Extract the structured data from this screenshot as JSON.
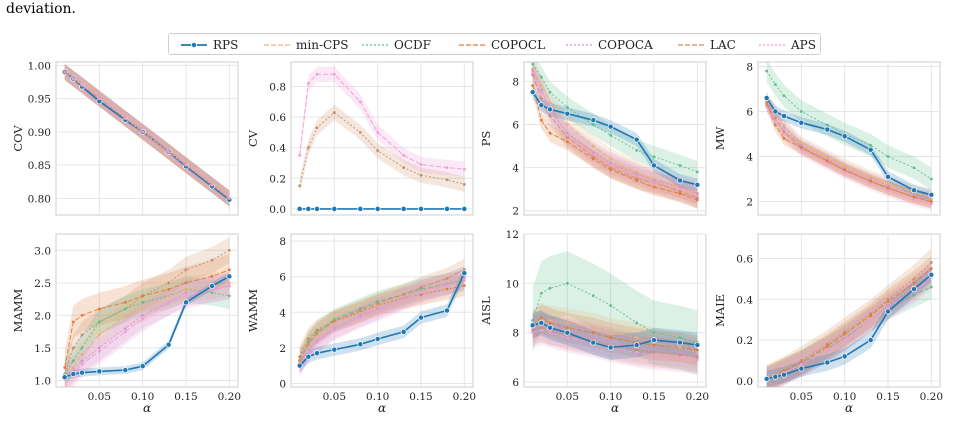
{
  "caption_tail": "deviation.",
  "legend": [
    {
      "name": "RPS",
      "color": "#1f77b4"
    },
    {
      "name": "min-CPS",
      "color": "#e8b27a"
    },
    {
      "name": "OCDF",
      "color": "#5fbf8f"
    },
    {
      "name": "COPOCL",
      "color": "#e07b39"
    },
    {
      "name": "COPOCA",
      "color": "#c79bd0"
    },
    {
      "name": "LAC",
      "color": "#c8906a"
    },
    {
      "name": "APS",
      "color": "#f39bd8"
    }
  ],
  "chart_data": [
    {
      "type": "line",
      "ylabel": "COV",
      "xlabel": "",
      "ylim": [
        0.775,
        1.005
      ],
      "xticks": [],
      "yticks": [
        0.8,
        0.85,
        0.9,
        0.95,
        1.0
      ],
      "ytick_labels": [
        "0.80",
        "0.85",
        "0.90",
        "0.95",
        "1.00"
      ],
      "x": [
        0.01,
        0.02,
        0.03,
        0.05,
        0.08,
        0.1,
        0.13,
        0.15,
        0.18,
        0.2
      ],
      "series": [
        {
          "name": "RPS",
          "values": [
            0.99,
            0.98,
            0.968,
            0.946,
            0.918,
            0.9,
            0.87,
            0.848,
            0.818,
            0.798
          ],
          "band": 0.003
        },
        {
          "name": "min-CPS",
          "values": [
            0.99,
            0.98,
            0.97,
            0.95,
            0.92,
            0.9,
            0.87,
            0.85,
            0.82,
            0.8
          ],
          "band": 0.012
        },
        {
          "name": "OCDF",
          "values": [
            0.99,
            0.98,
            0.97,
            0.95,
            0.92,
            0.9,
            0.87,
            0.85,
            0.82,
            0.8
          ],
          "band": 0.012
        },
        {
          "name": "COPOCL",
          "values": [
            0.99,
            0.98,
            0.97,
            0.95,
            0.92,
            0.9,
            0.87,
            0.85,
            0.82,
            0.8
          ],
          "band": 0.012
        },
        {
          "name": "COPOCA",
          "values": [
            0.99,
            0.98,
            0.97,
            0.95,
            0.92,
            0.9,
            0.87,
            0.85,
            0.82,
            0.8
          ],
          "band": 0.012
        },
        {
          "name": "LAC",
          "values": [
            0.99,
            0.98,
            0.97,
            0.95,
            0.92,
            0.9,
            0.87,
            0.85,
            0.82,
            0.8
          ],
          "band": 0.012
        },
        {
          "name": "APS",
          "values": [
            0.99,
            0.98,
            0.97,
            0.95,
            0.92,
            0.9,
            0.87,
            0.85,
            0.82,
            0.8
          ],
          "band": 0.012
        }
      ]
    },
    {
      "type": "line",
      "ylabel": "CV",
      "xlabel": "",
      "ylim": [
        -0.04,
        0.96
      ],
      "xticks": [],
      "yticks": [
        0.0,
        0.2,
        0.4,
        0.6,
        0.8
      ],
      "ytick_labels": [
        "0.0",
        "0.2",
        "0.4",
        "0.6",
        "0.8"
      ],
      "x": [
        0.01,
        0.02,
        0.03,
        0.05,
        0.08,
        0.1,
        0.13,
        0.15,
        0.18,
        0.2
      ],
      "series": [
        {
          "name": "LAC",
          "values": [
            0.15,
            0.4,
            0.53,
            0.63,
            0.5,
            0.38,
            0.27,
            0.22,
            0.19,
            0.16
          ],
          "band": 0.05
        },
        {
          "name": "APS",
          "values": [
            0.35,
            0.82,
            0.88,
            0.88,
            0.7,
            0.5,
            0.35,
            0.29,
            0.27,
            0.26
          ],
          "band": 0.05
        },
        {
          "name": "RPS",
          "values": [
            0.0,
            0.0,
            0.0,
            0.0,
            0.0,
            0.0,
            0.0,
            0.0,
            0.0,
            0.0
          ],
          "band": 0.0
        }
      ]
    },
    {
      "type": "line",
      "ylabel": "PS",
      "xlabel": "",
      "ylim": [
        1.8,
        8.9
      ],
      "xticks": [],
      "yticks": [
        2,
        4,
        6,
        8
      ],
      "ytick_labels": [
        "2",
        "4",
        "6",
        "8"
      ],
      "x": [
        0.01,
        0.02,
        0.03,
        0.05,
        0.08,
        0.1,
        0.13,
        0.15,
        0.18,
        0.2
      ],
      "series": [
        {
          "name": "OCDF",
          "values": [
            8.8,
            8.2,
            7.5,
            6.8,
            6.0,
            5.5,
            4.8,
            4.5,
            4.1,
            3.8
          ],
          "band": 0.5
        },
        {
          "name": "min-CPS",
          "values": [
            8.6,
            7.8,
            7.0,
            6.0,
            5.0,
            4.4,
            3.8,
            3.5,
            3.1,
            2.8
          ],
          "band": 0.5
        },
        {
          "name": "COPOCA",
          "values": [
            8.5,
            7.6,
            6.7,
            5.6,
            4.7,
            4.2,
            3.7,
            3.4,
            3.1,
            2.8
          ],
          "band": 0.5
        },
        {
          "name": "LAC",
          "values": [
            8.3,
            7.2,
            6.4,
            5.4,
            4.5,
            4.0,
            3.5,
            3.3,
            2.9,
            2.6
          ],
          "band": 0.5
        },
        {
          "name": "APS",
          "values": [
            8.4,
            7.5,
            6.6,
            5.5,
            4.6,
            4.1,
            3.6,
            3.3,
            3.0,
            2.7
          ],
          "band": 0.5
        },
        {
          "name": "COPOCL",
          "values": [
            7.8,
            6.2,
            5.6,
            5.2,
            4.4,
            3.9,
            3.4,
            3.1,
            2.8,
            2.5
          ],
          "band": 0.4
        },
        {
          "name": "RPS",
          "values": [
            7.5,
            6.9,
            6.7,
            6.5,
            6.2,
            5.9,
            5.3,
            4.1,
            3.4,
            3.2
          ],
          "band": 0.3
        }
      ]
    },
    {
      "type": "line",
      "ylabel": "MW",
      "xlabel": "",
      "ylim": [
        1.4,
        8.2
      ],
      "xticks": [],
      "yticks": [
        2,
        4,
        6,
        8
      ],
      "ytick_labels": [
        "2",
        "4",
        "6",
        "8"
      ],
      "x": [
        0.01,
        0.02,
        0.03,
        0.05,
        0.08,
        0.1,
        0.13,
        0.15,
        0.18,
        0.2
      ],
      "series": [
        {
          "name": "OCDF",
          "values": [
            7.8,
            7.2,
            6.7,
            6.0,
            5.4,
            5.0,
            4.5,
            4.0,
            3.5,
            3.0
          ],
          "band": 0.5
        },
        {
          "name": "min-CPS",
          "values": [
            6.5,
            6.0,
            5.4,
            4.6,
            4.0,
            3.6,
            3.1,
            2.8,
            2.4,
            2.2
          ],
          "band": 0.3
        },
        {
          "name": "COPOCA",
          "values": [
            6.4,
            5.9,
            5.3,
            4.5,
            3.9,
            3.5,
            3.0,
            2.7,
            2.3,
            2.1
          ],
          "band": 0.3
        },
        {
          "name": "LAC",
          "values": [
            6.3,
            5.7,
            5.1,
            4.4,
            3.8,
            3.4,
            2.9,
            2.6,
            2.2,
            2.0
          ],
          "band": 0.3
        },
        {
          "name": "APS",
          "values": [
            6.2,
            5.6,
            5.0,
            4.3,
            3.7,
            3.3,
            2.8,
            2.5,
            2.1,
            1.9
          ],
          "band": 0.3
        },
        {
          "name": "COPOCL",
          "values": [
            6.4,
            5.4,
            4.8,
            4.4,
            3.8,
            3.4,
            2.9,
            2.6,
            2.2,
            2.0
          ],
          "band": 0.3
        },
        {
          "name": "RPS",
          "values": [
            6.6,
            6.0,
            5.8,
            5.5,
            5.2,
            4.9,
            4.3,
            3.1,
            2.5,
            2.3
          ],
          "band": 0.25
        }
      ]
    },
    {
      "type": "line",
      "ylabel": "MAMM",
      "xlabel": "α",
      "ylim": [
        0.9,
        3.25
      ],
      "xticks": [
        0.05,
        0.1,
        0.15,
        0.2
      ],
      "xtick_labels": [
        "0.05",
        "0.10",
        "0.15",
        "0.20"
      ],
      "yticks": [
        1.0,
        1.5,
        2.0,
        2.5,
        3.0
      ],
      "ytick_labels": [
        "1.0",
        "1.5",
        "2.0",
        "2.5",
        "3.0"
      ],
      "x": [
        0.01,
        0.02,
        0.03,
        0.05,
        0.08,
        0.1,
        0.13,
        0.15,
        0.18,
        0.2
      ],
      "series": [
        {
          "name": "LAC",
          "values": [
            1.1,
            1.5,
            1.7,
            1.9,
            2.1,
            2.3,
            2.5,
            2.7,
            2.85,
            3.0
          ],
          "band": 0.2
        },
        {
          "name": "COPOCL",
          "values": [
            1.2,
            1.9,
            2.0,
            2.1,
            2.2,
            2.3,
            2.4,
            2.5,
            2.6,
            2.7
          ],
          "band": 0.25
        },
        {
          "name": "OCDF",
          "values": [
            1.1,
            1.3,
            1.5,
            1.9,
            2.1,
            2.2,
            2.3,
            2.4,
            2.35,
            2.3
          ],
          "band": 0.2
        },
        {
          "name": "min-CPS",
          "values": [
            1.05,
            1.2,
            1.4,
            1.7,
            2.0,
            2.1,
            2.3,
            2.4,
            2.45,
            2.5
          ],
          "band": 0.2
        },
        {
          "name": "COPOCA",
          "values": [
            1.05,
            1.15,
            1.3,
            1.5,
            1.8,
            2.0,
            2.2,
            2.35,
            2.4,
            2.45
          ],
          "band": 0.2
        },
        {
          "name": "APS",
          "values": [
            1.05,
            1.1,
            1.25,
            1.45,
            1.75,
            1.95,
            2.2,
            2.3,
            2.4,
            2.45
          ],
          "band": 0.2
        },
        {
          "name": "RPS",
          "values": [
            1.05,
            1.1,
            1.12,
            1.14,
            1.16,
            1.22,
            1.55,
            2.2,
            2.45,
            2.6
          ],
          "band": 0.06
        }
      ]
    },
    {
      "type": "line",
      "ylabel": "WAMM",
      "xlabel": "α",
      "ylim": [
        -0.2,
        8.4
      ],
      "xticks": [
        0.05,
        0.1,
        0.15,
        0.2
      ],
      "xtick_labels": [
        "0.05",
        "0.10",
        "0.15",
        "0.20"
      ],
      "yticks": [
        0,
        2,
        4,
        6,
        8
      ],
      "ytick_labels": [
        "0",
        "2",
        "4",
        "6",
        "8"
      ],
      "x": [
        0.01,
        0.02,
        0.03,
        0.05,
        0.08,
        0.1,
        0.13,
        0.15,
        0.18,
        0.2
      ],
      "series": [
        {
          "name": "COPOCL",
          "values": [
            1.5,
            2.5,
            3.0,
            3.5,
            4.0,
            4.4,
            4.8,
            5.0,
            5.3,
            5.5
          ],
          "band": 0.6
        },
        {
          "name": "OCDF",
          "values": [
            1.3,
            2.3,
            2.9,
            3.6,
            4.2,
            4.6,
            5.0,
            5.3,
            5.6,
            5.8
          ],
          "band": 0.6
        },
        {
          "name": "min-CPS",
          "values": [
            1.2,
            2.1,
            2.7,
            3.4,
            4.0,
            4.4,
            4.9,
            5.2,
            5.6,
            5.9
          ],
          "band": 0.6
        },
        {
          "name": "LAC",
          "values": [
            1.3,
            2.2,
            2.8,
            3.5,
            4.1,
            4.5,
            5.0,
            5.4,
            5.9,
            6.4
          ],
          "band": 0.6
        },
        {
          "name": "COPOCA",
          "values": [
            1.1,
            1.9,
            2.4,
            3.1,
            3.8,
            4.2,
            4.8,
            5.2,
            5.6,
            6.0
          ],
          "band": 0.6
        },
        {
          "name": "APS",
          "values": [
            1.0,
            1.8,
            2.3,
            3.0,
            3.7,
            4.1,
            4.7,
            5.1,
            5.5,
            5.8
          ],
          "band": 0.6
        },
        {
          "name": "RPS",
          "values": [
            1.0,
            1.5,
            1.7,
            1.9,
            2.2,
            2.5,
            2.9,
            3.7,
            4.1,
            6.2
          ],
          "band": 0.35
        }
      ]
    },
    {
      "type": "line",
      "ylabel": "AISL",
      "xlabel": "α",
      "ylim": [
        5.8,
        12.0
      ],
      "xticks": [
        0.05,
        0.1,
        0.15,
        0.2
      ],
      "xtick_labels": [
        "0.05",
        "0.10",
        "0.15",
        "0.20"
      ],
      "yticks": [
        6,
        8,
        10,
        12
      ],
      "ytick_labels": [
        "6",
        "8",
        "10",
        "12"
      ],
      "x": [
        0.01,
        0.02,
        0.03,
        0.05,
        0.08,
        0.1,
        0.13,
        0.15,
        0.18,
        0.2
      ],
      "series": [
        {
          "name": "OCDF",
          "values": [
            8.5,
            9.6,
            9.8,
            10.0,
            9.5,
            9.1,
            8.4,
            8.0,
            7.8,
            7.6
          ],
          "band": 1.3
        },
        {
          "name": "COPOCL",
          "values": [
            8.3,
            8.6,
            8.4,
            8.2,
            8.0,
            7.8,
            7.6,
            7.5,
            7.4,
            7.3
          ],
          "band": 0.6
        },
        {
          "name": "min-CPS",
          "values": [
            8.3,
            8.5,
            8.5,
            8.4,
            8.2,
            8.0,
            7.8,
            7.6,
            7.4,
            7.2
          ],
          "band": 0.6
        },
        {
          "name": "COPOCA",
          "values": [
            8.2,
            8.3,
            8.1,
            8.0,
            7.8,
            7.6,
            7.4,
            7.3,
            7.2,
            7.1
          ],
          "band": 0.6
        },
        {
          "name": "LAC",
          "values": [
            8.1,
            8.2,
            8.1,
            7.9,
            7.7,
            7.5,
            7.3,
            7.2,
            7.1,
            7.0
          ],
          "band": 0.6
        },
        {
          "name": "APS",
          "values": [
            8.0,
            8.1,
            8.0,
            7.8,
            7.6,
            7.4,
            7.2,
            7.1,
            7.0,
            6.9
          ],
          "band": 0.6
        },
        {
          "name": "RPS",
          "values": [
            8.3,
            8.4,
            8.2,
            8.0,
            7.6,
            7.4,
            7.5,
            7.7,
            7.6,
            7.5
          ],
          "band": 0.5
        }
      ]
    },
    {
      "type": "line",
      "ylabel": "MAIE",
      "xlabel": "α",
      "ylim": [
        -0.03,
        0.72
      ],
      "xticks": [
        0.05,
        0.1,
        0.15,
        0.2
      ],
      "xtick_labels": [
        "0.05",
        "0.10",
        "0.15",
        "0.20"
      ],
      "yticks": [
        0.0,
        0.2,
        0.4,
        0.6
      ],
      "ytick_labels": [
        "0.0",
        "0.2",
        "0.4",
        "0.6"
      ],
      "x": [
        0.01,
        0.02,
        0.03,
        0.05,
        0.08,
        0.1,
        0.13,
        0.15,
        0.18,
        0.2
      ],
      "series": [
        {
          "name": "LAC",
          "values": [
            0.01,
            0.03,
            0.05,
            0.1,
            0.18,
            0.24,
            0.33,
            0.4,
            0.5,
            0.58
          ],
          "band": 0.07
        },
        {
          "name": "OCDF",
          "values": [
            0.01,
            0.03,
            0.05,
            0.09,
            0.16,
            0.21,
            0.3,
            0.36,
            0.42,
            0.46
          ],
          "band": 0.06
        },
        {
          "name": "min-CPS",
          "values": [
            0.01,
            0.03,
            0.05,
            0.09,
            0.16,
            0.22,
            0.31,
            0.38,
            0.46,
            0.52
          ],
          "band": 0.06
        },
        {
          "name": "COPOCL",
          "values": [
            0.01,
            0.03,
            0.05,
            0.09,
            0.17,
            0.23,
            0.32,
            0.39,
            0.48,
            0.55
          ],
          "band": 0.06
        },
        {
          "name": "COPOCA",
          "values": [
            0.01,
            0.02,
            0.04,
            0.08,
            0.15,
            0.21,
            0.3,
            0.37,
            0.45,
            0.52
          ],
          "band": 0.06
        },
        {
          "name": "APS",
          "values": [
            0.01,
            0.02,
            0.04,
            0.08,
            0.15,
            0.2,
            0.3,
            0.36,
            0.44,
            0.51
          ],
          "band": 0.06
        },
        {
          "name": "RPS",
          "values": [
            0.01,
            0.02,
            0.03,
            0.06,
            0.09,
            0.12,
            0.2,
            0.34,
            0.45,
            0.52
          ],
          "band": 0.04
        }
      ]
    }
  ]
}
